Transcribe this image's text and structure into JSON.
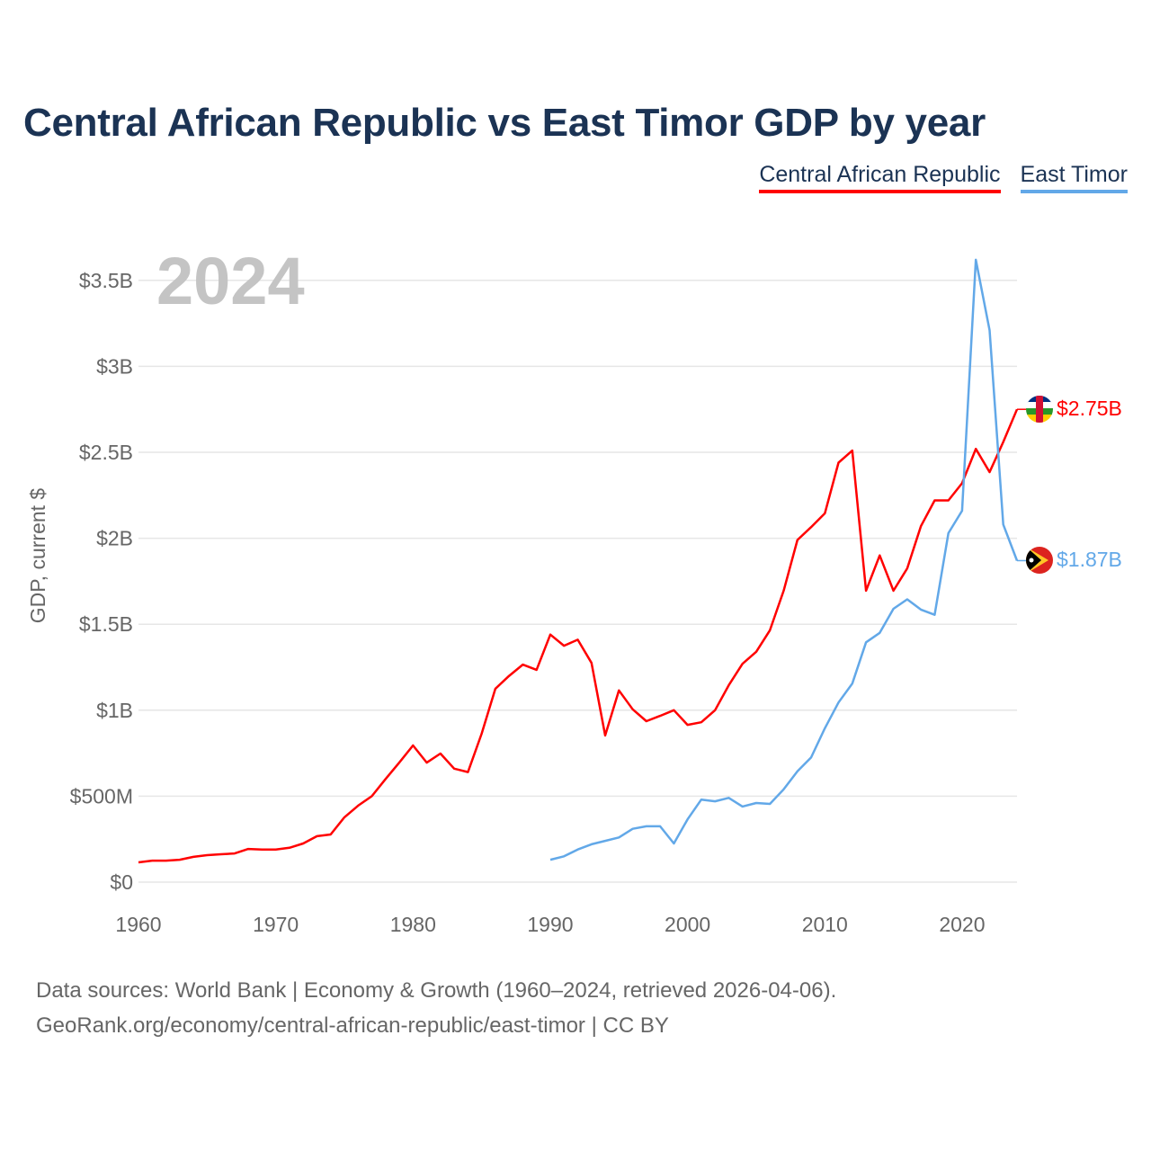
{
  "chart_data": {
    "type": "line",
    "title": "Central African Republic vs East Timor GDP by year",
    "ylabel": "GDP, current $",
    "xlabel": "",
    "year_label": "2024",
    "xlim": [
      1960,
      2024
    ],
    "ylim": [
      0,
      3.7
    ],
    "x_ticks": [
      1960,
      1970,
      1980,
      1990,
      2000,
      2010,
      2020
    ],
    "y_ticks": [
      {
        "value": 0,
        "label": "$0"
      },
      {
        "value": 0.5,
        "label": "$500M"
      },
      {
        "value": 1,
        "label": "$1B"
      },
      {
        "value": 1.5,
        "label": "$1.5B"
      },
      {
        "value": 2,
        "label": "$2B"
      },
      {
        "value": 2.5,
        "label": "$2.5B"
      },
      {
        "value": 3,
        "label": "$3B"
      },
      {
        "value": 3.5,
        "label": "$3.5B"
      }
    ],
    "grid": true,
    "legend_position": "top-right",
    "units": "billions USD",
    "series": [
      {
        "name": "Central African Republic",
        "color": "#ff0000",
        "end_label": "$2.75B",
        "start_year": 1960,
        "values": [
          0.115,
          0.125,
          0.125,
          0.13,
          0.147,
          0.157,
          0.162,
          0.167,
          0.193,
          0.19,
          0.19,
          0.2,
          0.225,
          0.267,
          0.277,
          0.377,
          0.445,
          0.5,
          0.6,
          0.695,
          0.795,
          0.695,
          0.748,
          0.66,
          0.64,
          0.863,
          1.125,
          1.2,
          1.265,
          1.235,
          1.44,
          1.375,
          1.41,
          1.275,
          0.853,
          1.115,
          1.005,
          0.936,
          0.967,
          1.0,
          0.915,
          0.93,
          1.0,
          1.145,
          1.27,
          1.34,
          1.465,
          1.695,
          1.99,
          2.065,
          2.145,
          2.44,
          2.51,
          1.695,
          1.9,
          1.695,
          1.825,
          2.07,
          2.22,
          2.22,
          2.32,
          2.52,
          2.385,
          2.56,
          2.75
        ]
      },
      {
        "name": "East Timor",
        "color": "#62a8e8",
        "end_label": "$1.87B",
        "start_year": 1990,
        "values": [
          0.13,
          0.15,
          0.19,
          0.22,
          0.24,
          0.26,
          0.31,
          0.325,
          0.325,
          0.225,
          0.365,
          0.48,
          0.47,
          0.49,
          0.44,
          0.46,
          0.455,
          0.54,
          0.645,
          0.725,
          0.895,
          1.045,
          1.155,
          1.395,
          1.45,
          1.59,
          1.645,
          1.585,
          1.555,
          2.03,
          2.16,
          3.62,
          3.21,
          2.08,
          1.87
        ]
      }
    ]
  },
  "footer": {
    "line1": "Data sources: World Bank | Economy & Growth (1960–2024, retrieved 2026-04-06).",
    "line2": "GeoRank.org/economy/central-african-republic/east-timor | CC BY"
  }
}
